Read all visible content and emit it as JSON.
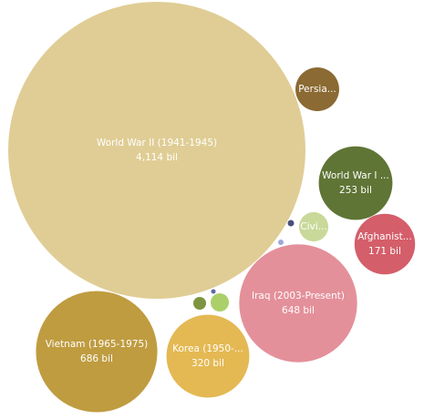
{
  "chart_data": {
    "type": "bubble",
    "categories": [
      "World War II (1941-1945)",
      "Persia...",
      "World War I ...",
      "Afghanist...",
      "Civi...",
      null,
      null,
      "Iraq (2003-Present)",
      "Vietnam (1965-1975)",
      "Korea (1950-...",
      null,
      null,
      null
    ],
    "values": [
      4114,
      89,
      253,
      171,
      40,
      1.9,
      1.4,
      648,
      686,
      320,
      7.6,
      15.5,
      1
    ],
    "value_labels": [
      "4,114 bil",
      null,
      "253 bil",
      "171 bil",
      null,
      null,
      null,
      "648 bil",
      "686 bil",
      "320 bil",
      null,
      null,
      null
    ],
    "colors": [
      "#e0cd95",
      "#8b6a33",
      "#5f7535",
      "#d45e6a",
      "#c9d99a",
      "#4b4f7a",
      "#a0a8d6",
      "#e4909a",
      "#bf9c40",
      "#e4b953",
      "#7e9440",
      "#abd06a",
      "#5b6aa8"
    ]
  }
}
